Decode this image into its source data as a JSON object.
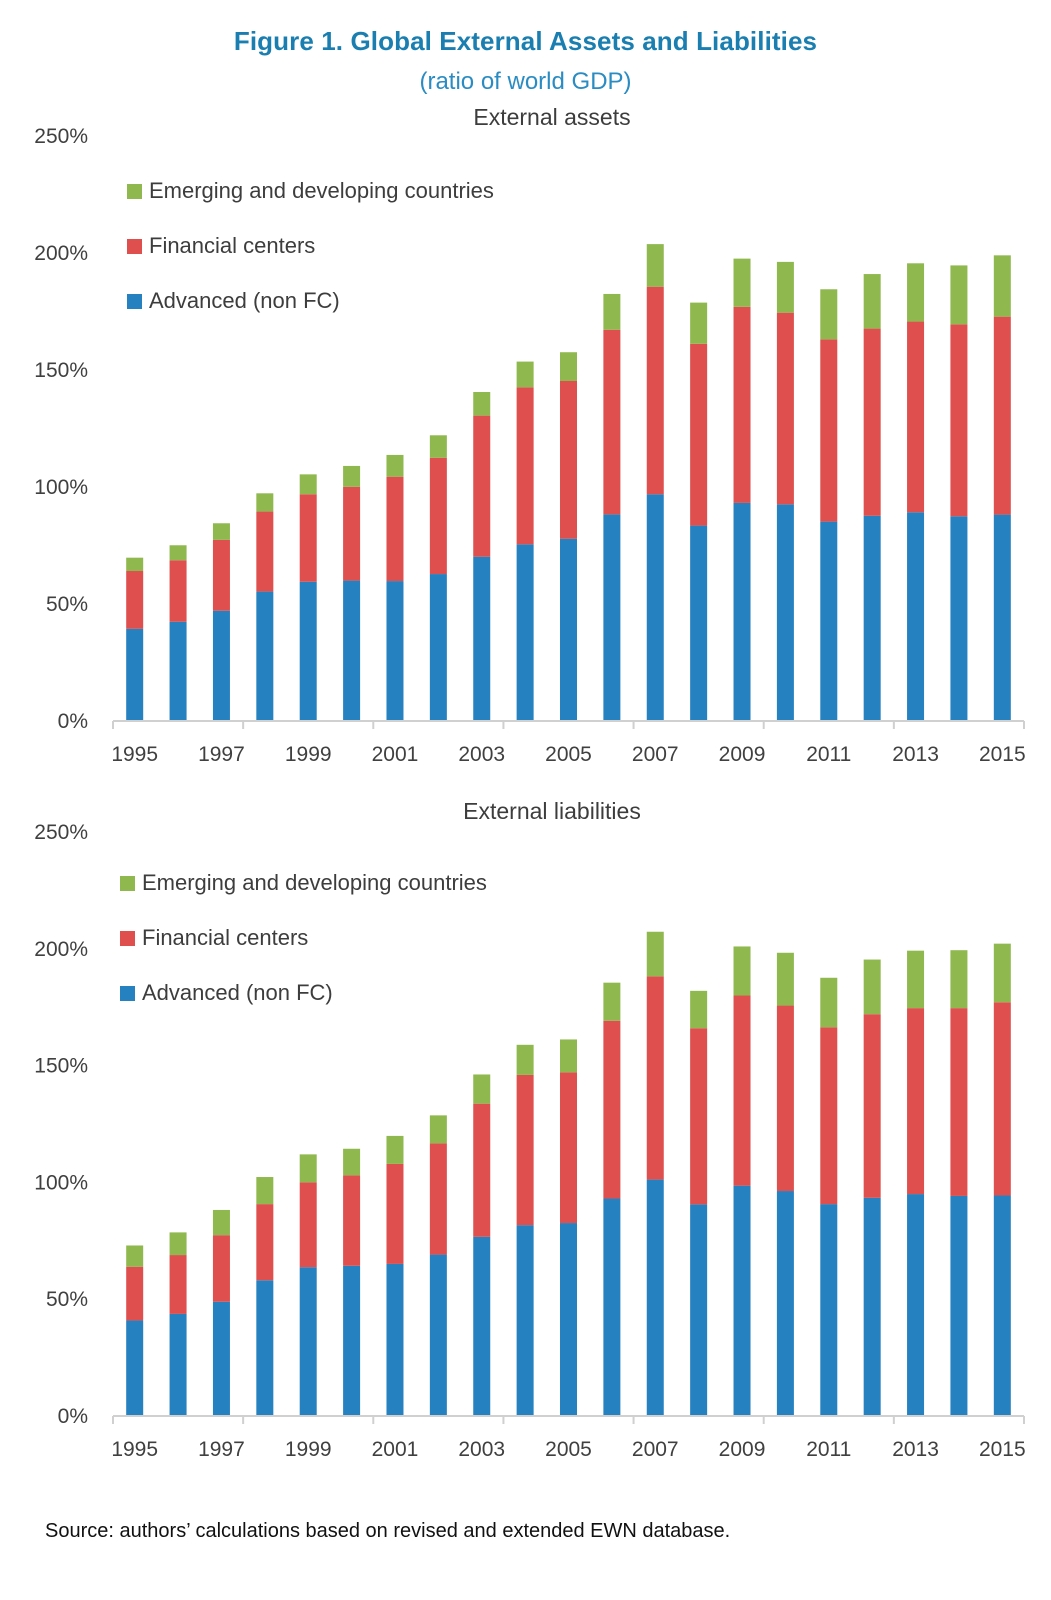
{
  "figure": {
    "title": "Figure 1. Global External Assets and Liabilities",
    "subtitle": "(ratio of world GDP)",
    "source": "Source: authors’ calculations based on revised and extended EWN database."
  },
  "colors": {
    "advanced": "#2581c0",
    "financial_centers": "#de4f4e",
    "emerging": "#8fb84e",
    "axis": "#d0d0d0",
    "title_blue": "#1a7fb0"
  },
  "chart_data": [
    {
      "type": "bar",
      "stacked": true,
      "title": "External assets",
      "xlabel": "",
      "ylabel": "",
      "ylim": [
        0,
        250
      ],
      "yticks": [
        "0%",
        "50%",
        "100%",
        "150%",
        "200%",
        "250%"
      ],
      "grid": false,
      "legend_position": "top-left",
      "categories": [
        "1995",
        "1996",
        "1997",
        "1998",
        "1999",
        "2000",
        "2001",
        "2002",
        "2003",
        "2004",
        "2005",
        "2006",
        "2007",
        "2008",
        "2009",
        "2010",
        "2011",
        "2012",
        "2013",
        "2014",
        "2015"
      ],
      "xtick_labels": [
        "1995",
        "1997",
        "1999",
        "2001",
        "2003",
        "2005",
        "2007",
        "2009",
        "2011",
        "2013",
        "2015"
      ],
      "series": [
        {
          "name": "Advanced (non FC)",
          "key": "advanced",
          "values": [
            39.4,
            42.4,
            47.1,
            55.3,
            59.5,
            60.0,
            59.8,
            62.8,
            70.2,
            75.5,
            77.9,
            88.3,
            96.9,
            83.5,
            93.2,
            92.6,
            85.2,
            87.7,
            89.2,
            87.5,
            88.2
          ]
        },
        {
          "name": "Financial centers",
          "key": "financial_centers",
          "values": [
            24.7,
            26.3,
            30.3,
            34.2,
            37.4,
            40.1,
            44.6,
            49.7,
            60.3,
            67.1,
            67.4,
            78.9,
            88.7,
            77.7,
            83.8,
            81.9,
            77.9,
            80.0,
            81.5,
            82.0,
            84.6
          ]
        },
        {
          "name": "Emerging and developing countries",
          "key": "emerging",
          "values": [
            5.7,
            6.4,
            7.1,
            7.8,
            8.5,
            8.9,
            9.3,
            9.6,
            10.1,
            11.0,
            12.3,
            15.3,
            18.2,
            17.6,
            20.6,
            21.7,
            21.4,
            23.3,
            24.9,
            25.2,
            26.2
          ]
        }
      ],
      "legend": [
        "Emerging and developing countries",
        "Financial centers",
        "Advanced (non FC)"
      ]
    },
    {
      "type": "bar",
      "stacked": true,
      "title": "External liabilities",
      "xlabel": "",
      "ylabel": "",
      "ylim": [
        0,
        250
      ],
      "yticks": [
        "0%",
        "50%",
        "100%",
        "150%",
        "200%",
        "250%"
      ],
      "grid": false,
      "legend_position": "top-left",
      "categories": [
        "1995",
        "1996",
        "1997",
        "1998",
        "1999",
        "2000",
        "2001",
        "2002",
        "2003",
        "2004",
        "2005",
        "2006",
        "2007",
        "2008",
        "2009",
        "2010",
        "2011",
        "2012",
        "2013",
        "2014",
        "2015"
      ],
      "xtick_labels": [
        "1995",
        "1997",
        "1999",
        "2001",
        "2003",
        "2005",
        "2007",
        "2009",
        "2011",
        "2013",
        "2015"
      ],
      "series": [
        {
          "name": "Advanced (non FC)",
          "key": "advanced",
          "values": [
            40.9,
            43.7,
            48.9,
            58.1,
            63.7,
            64.3,
            65.1,
            69.1,
            76.7,
            81.7,
            82.6,
            93.1,
            101.2,
            90.6,
            98.6,
            96.3,
            90.7,
            93.4,
            95.0,
            94.2,
            94.4
          ]
        },
        {
          "name": "Financial centers",
          "key": "financial_centers",
          "values": [
            23.0,
            25.2,
            28.5,
            32.6,
            36.3,
            38.7,
            42.8,
            47.6,
            57.0,
            64.3,
            64.5,
            76.1,
            87.0,
            75.4,
            81.4,
            79.4,
            75.7,
            78.6,
            79.6,
            80.4,
            82.7
          ]
        },
        {
          "name": "Emerging and developing countries",
          "key": "emerging",
          "values": [
            9.1,
            9.7,
            10.8,
            11.6,
            12.0,
            11.4,
            12.0,
            12.0,
            12.5,
            12.9,
            14.1,
            16.3,
            19.1,
            16.0,
            21.0,
            22.6,
            21.2,
            23.4,
            24.6,
            24.8,
            25.1
          ]
        }
      ],
      "legend": [
        "Emerging and developing countries",
        "Financial centers",
        "Advanced (non FC)"
      ]
    }
  ]
}
